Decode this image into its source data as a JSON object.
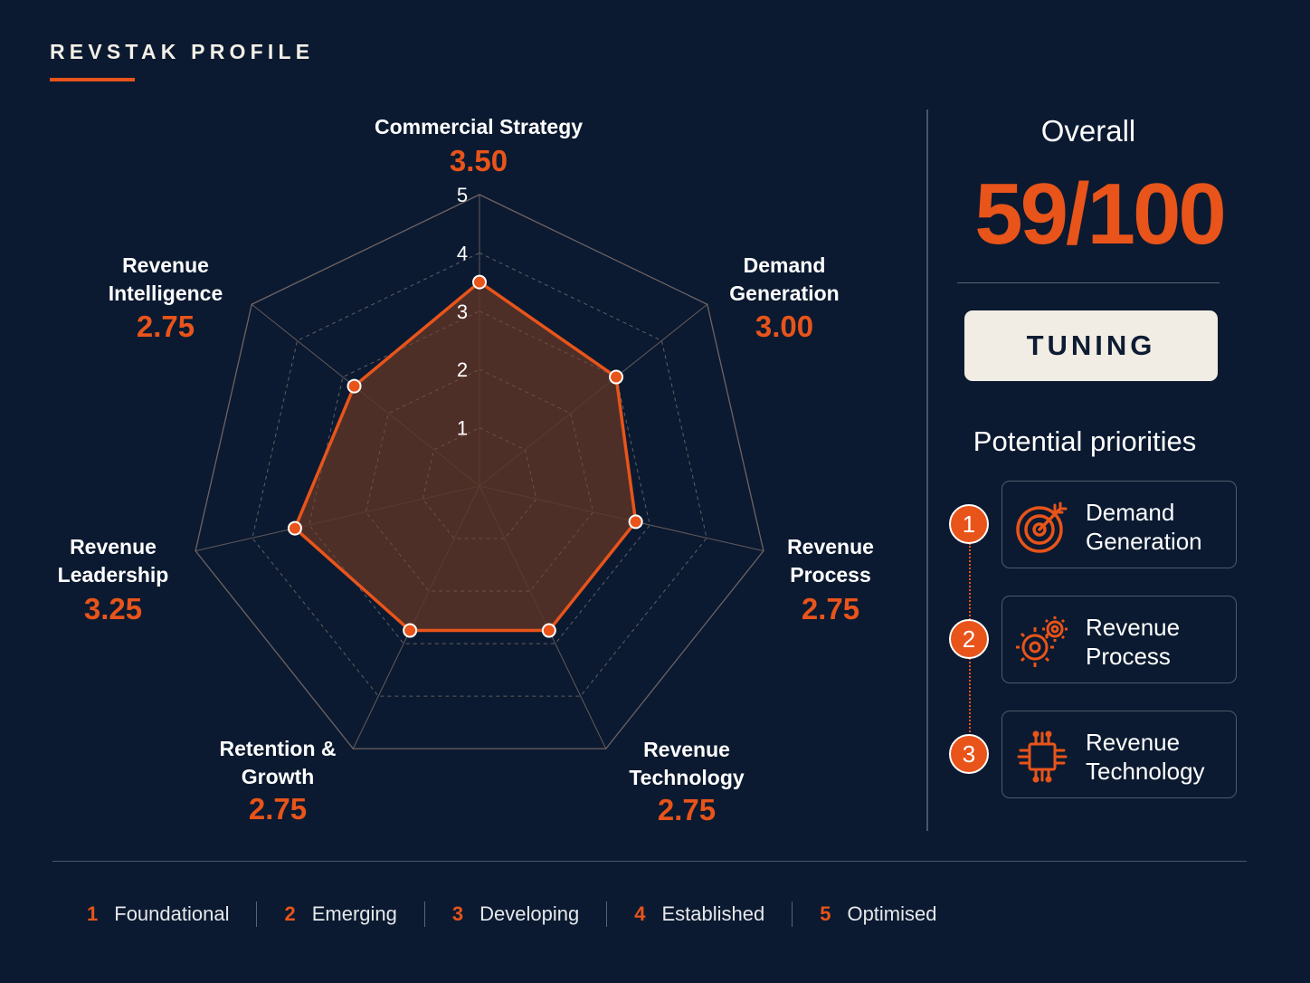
{
  "header": {
    "title": "REVSTAK PROFILE"
  },
  "chart_data": {
    "type": "radar",
    "axes": [
      {
        "label": "Commercial Strategy",
        "value": 3.5,
        "display": "3.50"
      },
      {
        "label": "Demand Generation",
        "value": 3.0,
        "display": "3.00"
      },
      {
        "label": "Revenue Process",
        "value": 2.75,
        "display": "2.75"
      },
      {
        "label": "Revenue Technology",
        "value": 2.75,
        "display": "2.75"
      },
      {
        "label": "Retention & Growth",
        "value": 2.75,
        "display": "2.75"
      },
      {
        "label": "Revenue Leadership",
        "value": 3.25,
        "display": "3.25"
      },
      {
        "label": "Revenue Intelligence",
        "value": 2.75,
        "display": "2.75"
      }
    ],
    "scale": {
      "min": 0,
      "max": 5,
      "ticks": [
        "1",
        "2",
        "3",
        "4",
        "5"
      ]
    },
    "grid": true,
    "colors": {
      "series": "#e8541a",
      "fill": "#5a3426",
      "grid": "#7a6a6a"
    }
  },
  "overall": {
    "label": "Overall",
    "score": "59/100",
    "tier": "TUNING"
  },
  "priorities": {
    "title": "Potential priorities",
    "items": [
      {
        "number": "1",
        "label": "Demand Generation",
        "icon": "target-icon"
      },
      {
        "number": "2",
        "label": "Revenue Process",
        "icon": "gears-icon"
      },
      {
        "number": "3",
        "label": "Revenue Technology",
        "icon": "chip-icon"
      }
    ]
  },
  "legend": [
    {
      "number": "1",
      "label": "Foundational"
    },
    {
      "number": "2",
      "label": "Emerging"
    },
    {
      "number": "3",
      "label": "Developing"
    },
    {
      "number": "4",
      "label": "Established"
    },
    {
      "number": "5",
      "label": "Optimised"
    }
  ],
  "colors": {
    "accent": "#e8541a",
    "background": "#0b1a30",
    "badge": "#f1ede4"
  }
}
